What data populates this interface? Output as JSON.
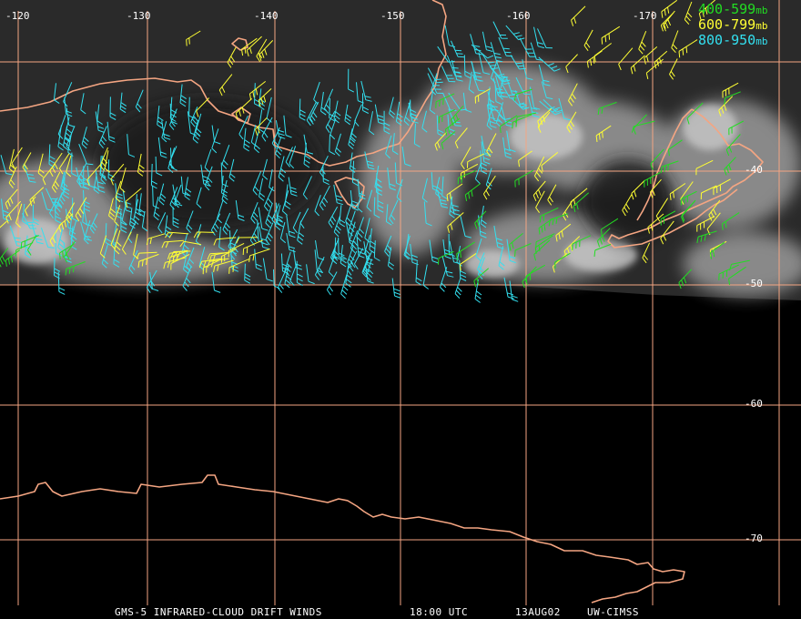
{
  "colors": {
    "background": "#000000",
    "gridline": "#f4a582",
    "coastline": "#f4a582",
    "band_400_599": "#22dd22",
    "band_600_799": "#ffff33",
    "band_800_950": "#33e0f0"
  },
  "longitude_labels": [
    "-120",
    "-130",
    "-140",
    "-150",
    "-160",
    "-170"
  ],
  "latitude_labels": [
    "-40",
    "-50",
    "-60",
    "-70"
  ],
  "legend": [
    {
      "label": "400-599",
      "unit": "mb",
      "color": "#22dd22"
    },
    {
      "label": "600-799",
      "unit": "mb",
      "color": "#ffff33"
    },
    {
      "label": "800-950",
      "unit": "mb",
      "color": "#33e0f0"
    }
  ],
  "footer": {
    "product": "GMS-5 INFRARED-CLOUD DRIFT WINDS",
    "time": "18:00 UTC",
    "date": "13AUG02",
    "source": "UW-CIMSS"
  }
}
